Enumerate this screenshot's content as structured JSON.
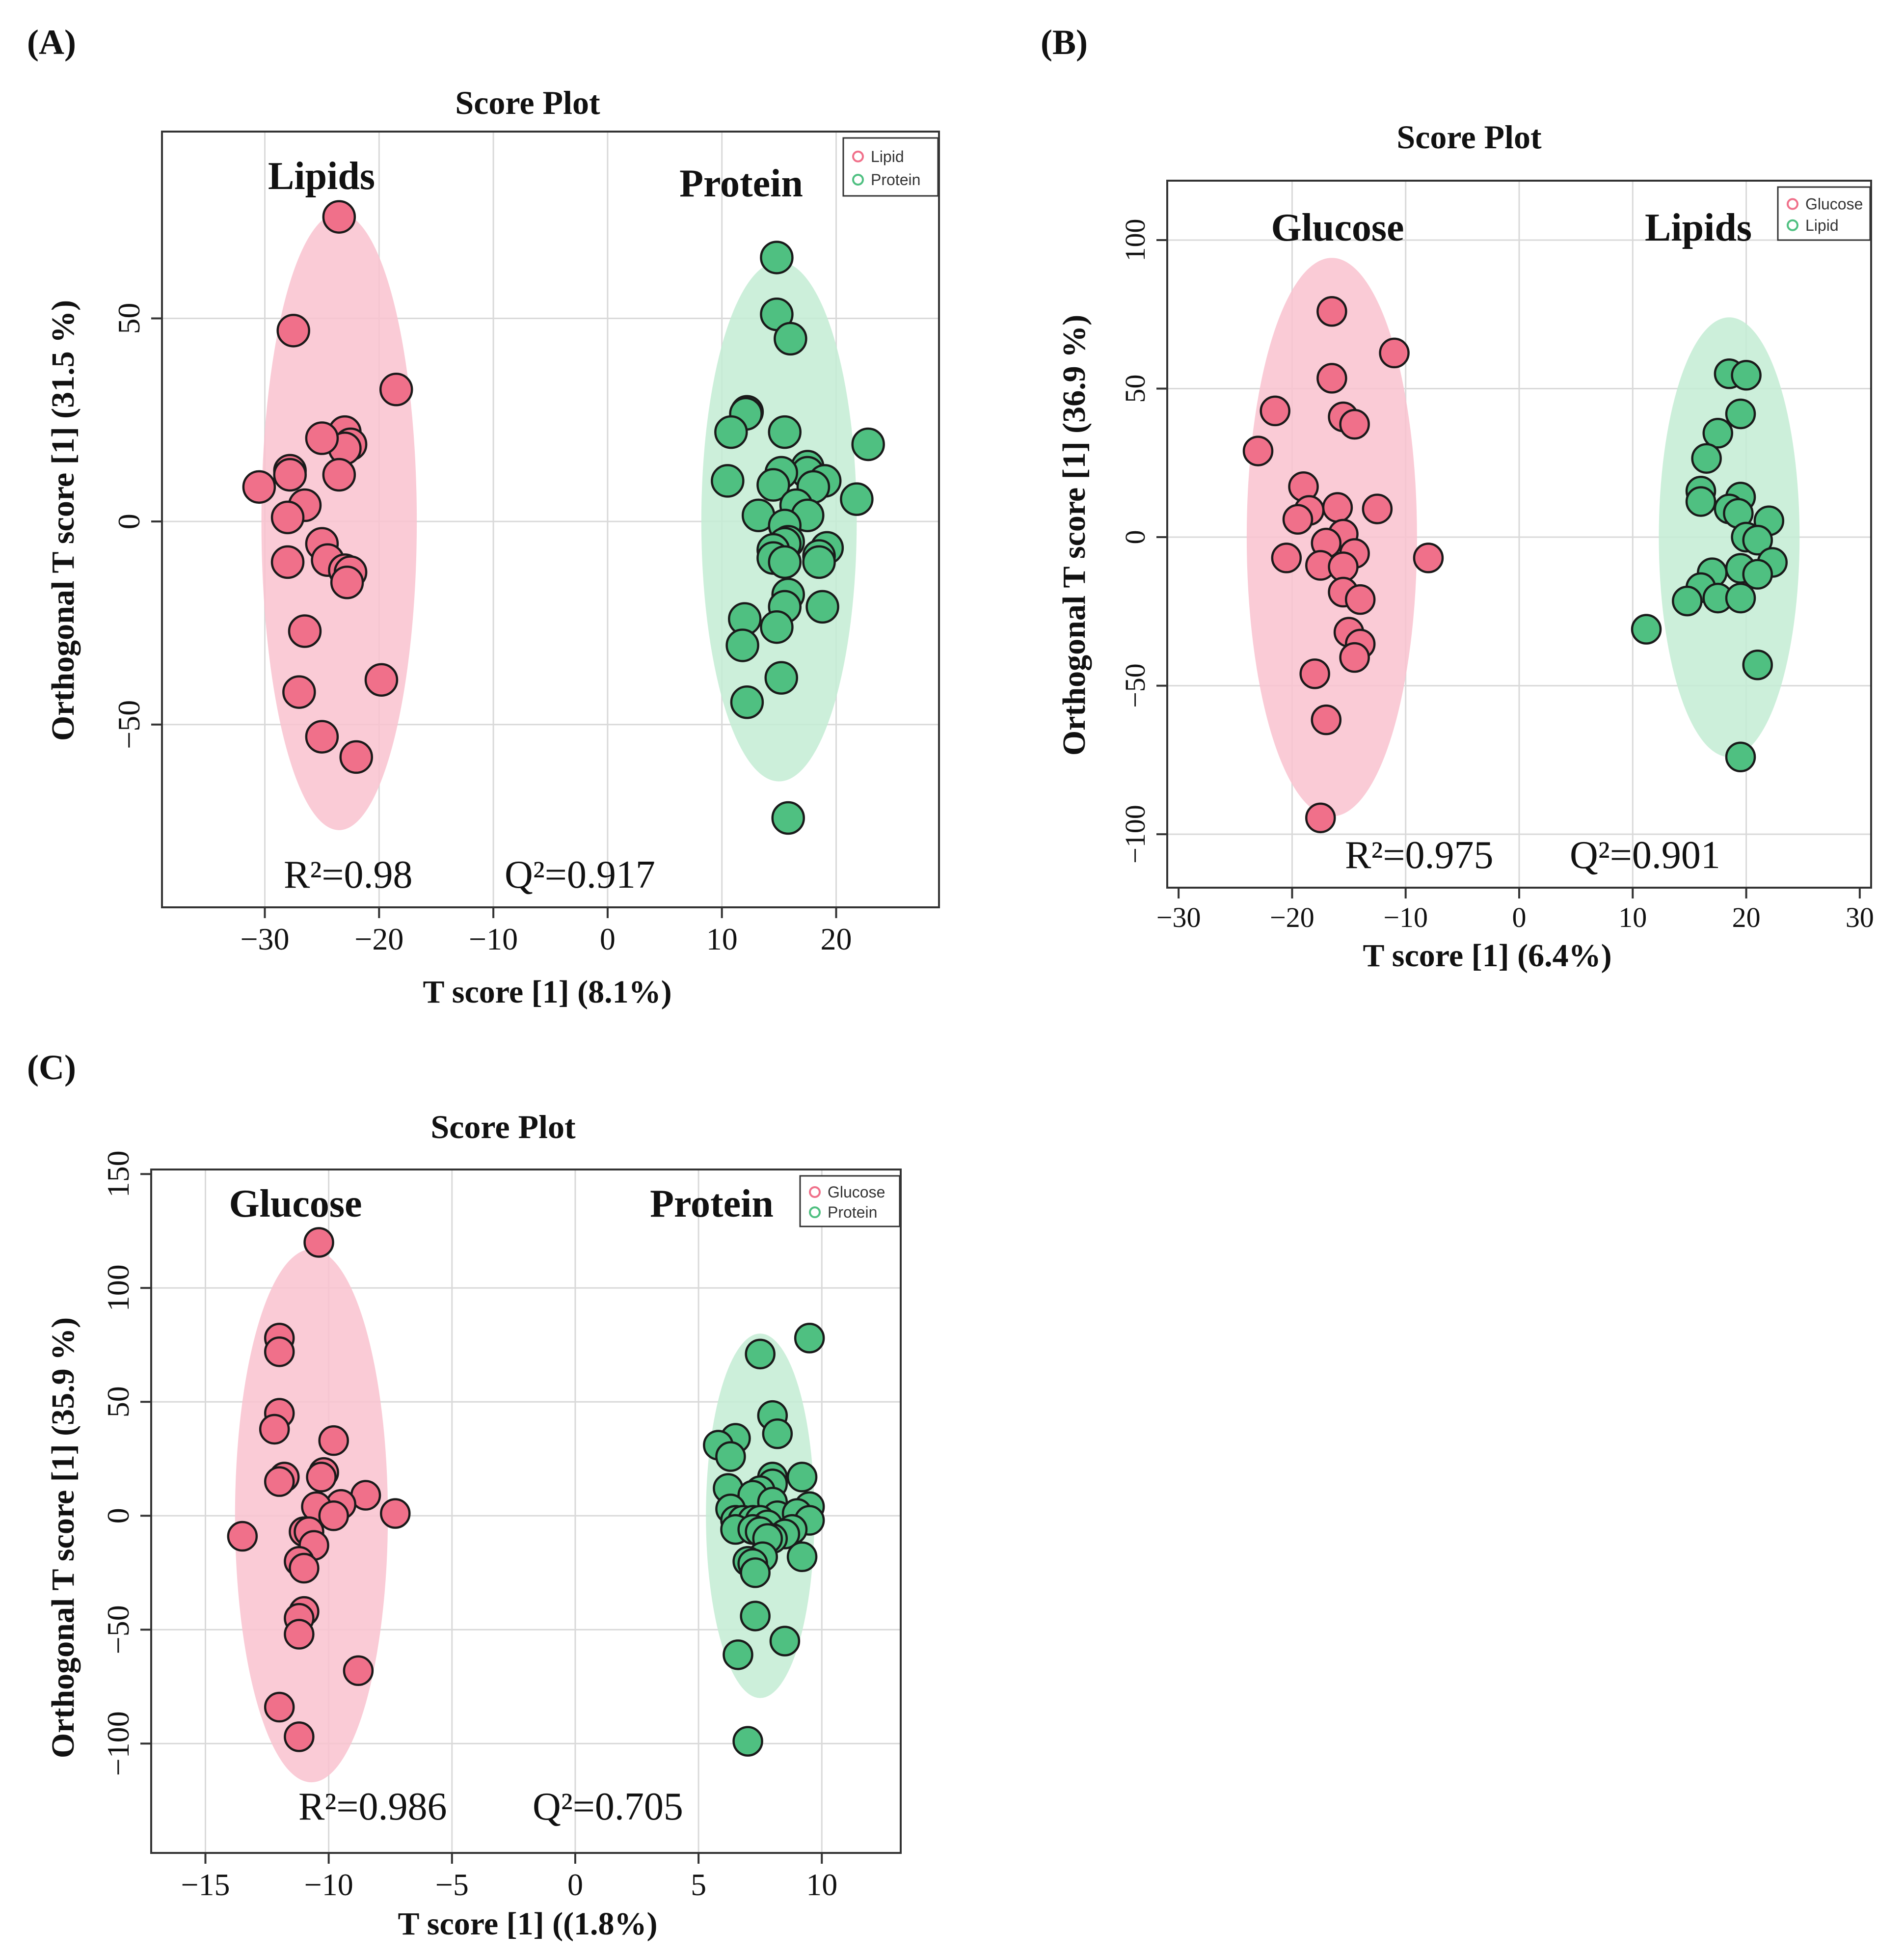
{
  "figure": {
    "panels_label_style": "parenthesized bold letters"
  },
  "colors": {
    "group_a": "#f0708a",
    "group_a_ellipse": "#f9c2cf",
    "group_b": "#4fc081",
    "group_b_ellipse": "#c3ecd3",
    "grid": "#d9d9d9",
    "axis": "#333333",
    "text": "#111111"
  },
  "chart_data": [
    {
      "panel_label": "(A)",
      "type": "scatter",
      "title": "Score Plot",
      "xlabel": "T score [1] (8.1%)",
      "ylabel": "Orthogonal T score [1] (31.5 %)",
      "xlim": [
        -39,
        29
      ],
      "ylim": [
        -95,
        96
      ],
      "xticks": [
        -30,
        -20,
        -10,
        0,
        10,
        20
      ],
      "xtick_labels": [
        "−30",
        "−20",
        "−10",
        "0",
        "10",
        "20"
      ],
      "yticks": [
        -50,
        0,
        50
      ],
      "ytick_labels": [
        "−50",
        "0",
        "50"
      ],
      "xgrid": [
        -30,
        -20,
        -10,
        0,
        10,
        20
      ],
      "ygrid": [
        -50,
        0,
        50
      ],
      "legend_position": "top-right",
      "stats": {
        "r2": "R²=0.98",
        "q2": "Q²=0.917"
      },
      "series": [
        {
          "name": "Lipid",
          "annotation": "Lipids",
          "color_key": "group_a",
          "ellipse": {
            "cx": -23.5,
            "cy": 0,
            "rx": 6.8,
            "ry": 76
          },
          "points": [
            [
              -23.5,
              75
            ],
            [
              -27.5,
              47
            ],
            [
              -18.5,
              32.5
            ],
            [
              -23,
              22
            ],
            [
              -22.5,
              19
            ],
            [
              -23,
              18
            ],
            [
              -25,
              20.5
            ],
            [
              -27.8,
              12.5
            ],
            [
              -27.8,
              11.5
            ],
            [
              -23.5,
              11.5
            ],
            [
              -30.5,
              8.5
            ],
            [
              -26.5,
              4
            ],
            [
              -28,
              1
            ],
            [
              -25,
              -5.5
            ],
            [
              -24.5,
              -9.5
            ],
            [
              -23,
              -12
            ],
            [
              -22.5,
              -12.5
            ],
            [
              -22.8,
              -15
            ],
            [
              -28,
              -10
            ],
            [
              -26.5,
              -27
            ],
            [
              -19.8,
              -39
            ],
            [
              -27,
              -42
            ],
            [
              -25,
              -53
            ],
            [
              -22,
              -58
            ]
          ]
        },
        {
          "name": "Protein",
          "annotation": "Protein",
          "color_key": "group_b",
          "ellipse": {
            "cx": 15,
            "cy": 0,
            "rx": 6.8,
            "ry": 64
          },
          "points": [
            [
              14.8,
              65
            ],
            [
              14.8,
              51
            ],
            [
              16,
              45
            ],
            [
              12.2,
              27
            ],
            [
              12.1,
              26.5
            ],
            [
              10.8,
              22
            ],
            [
              15.5,
              22
            ],
            [
              22.8,
              19
            ],
            [
              17.5,
              13.5
            ],
            [
              17.5,
              12
            ],
            [
              15.2,
              12
            ],
            [
              14.5,
              9
            ],
            [
              10.5,
              10
            ],
            [
              19,
              10
            ],
            [
              18,
              8.5
            ],
            [
              21.8,
              5.5
            ],
            [
              16.5,
              4
            ],
            [
              17.5,
              1.5
            ],
            [
              13.2,
              1.5
            ],
            [
              15.5,
              -1
            ],
            [
              15.8,
              -5
            ],
            [
              15.5,
              -5.5
            ],
            [
              14.5,
              -7
            ],
            [
              19.2,
              -6.5
            ],
            [
              14.5,
              -9
            ],
            [
              18.5,
              -8.5
            ],
            [
              18.5,
              -10
            ],
            [
              15.5,
              -10
            ],
            [
              15.8,
              -18
            ],
            [
              15.5,
              -21
            ],
            [
              18.8,
              -21
            ],
            [
              12,
              -24
            ],
            [
              14.8,
              -26
            ],
            [
              11.8,
              -30.5
            ],
            [
              15.2,
              -38.5
            ],
            [
              12.2,
              -44.5
            ],
            [
              15.8,
              -73
            ]
          ]
        }
      ]
    },
    {
      "panel_label": "(B)",
      "type": "scatter",
      "title": "Score Plot",
      "xlabel": "T score [1] (6.4%)",
      "ylabel": "Orthogonal T score [1] (36.9 %)",
      "xlim": [
        -31,
        31
      ],
      "ylim": [
        -118,
        120
      ],
      "xticks": [
        -30,
        -20,
        -10,
        0,
        10,
        20,
        30
      ],
      "xtick_labels": [
        "−30",
        "−20",
        "−10",
        "0",
        "10",
        "20",
        "30"
      ],
      "yticks": [
        -100,
        -50,
        0,
        50,
        100
      ],
      "ytick_labels": [
        "−100",
        "−50",
        "0",
        "50",
        "100"
      ],
      "xgrid": [
        -20,
        -10,
        0,
        10,
        20
      ],
      "ygrid": [
        -100,
        -50,
        0,
        50,
        100
      ],
      "legend_position": "top-right",
      "stats": {
        "r2": "R²=0.975",
        "q2": "Q²=0.901"
      },
      "series": [
        {
          "name": "Glucose",
          "annotation": "Glucose",
          "color_key": "group_a",
          "ellipse": {
            "cx": -16.5,
            "cy": 0,
            "rx": 7.5,
            "ry": 94
          },
          "points": [
            [
              -16.5,
              76
            ],
            [
              -11,
              62
            ],
            [
              -16.5,
              53.5
            ],
            [
              -21.5,
              42.5
            ],
            [
              -15.5,
              40.5
            ],
            [
              -14.5,
              38
            ],
            [
              -23,
              29
            ],
            [
              -19,
              17
            ],
            [
              -16,
              10
            ],
            [
              -12.5,
              9.5
            ],
            [
              -18.5,
              9
            ],
            [
              -19.5,
              6
            ],
            [
              -15.5,
              1
            ],
            [
              -14.5,
              -5.5
            ],
            [
              -20.5,
              -7
            ],
            [
              -17,
              -2
            ],
            [
              -8,
              -7
            ],
            [
              -17.5,
              -9.5
            ],
            [
              -15.5,
              -10
            ],
            [
              -15.5,
              -18.5
            ],
            [
              -14,
              -21
            ],
            [
              -15,
              -32
            ],
            [
              -14,
              -36
            ],
            [
              -14.5,
              -40.5
            ],
            [
              -18,
              -46
            ],
            [
              -17,
              -61.5
            ],
            [
              -17.5,
              -94.5
            ]
          ]
        },
        {
          "name": "Lipid",
          "annotation": "Lipids",
          "color_key": "group_b",
          "ellipse": {
            "cx": 18.5,
            "cy": 0,
            "rx": 6.2,
            "ry": 74
          },
          "points": [
            [
              18.5,
              55
            ],
            [
              20,
              54.5
            ],
            [
              19.5,
              41.5
            ],
            [
              17.5,
              35
            ],
            [
              16.5,
              26.5
            ],
            [
              16,
              15.5
            ],
            [
              16,
              12
            ],
            [
              19.5,
              13.5
            ],
            [
              18.5,
              9.5
            ],
            [
              19.3,
              8
            ],
            [
              22,
              5.5
            ],
            [
              20,
              0
            ],
            [
              21,
              -1
            ],
            [
              19.5,
              -10.5
            ],
            [
              22.3,
              -8.5
            ],
            [
              21,
              -12.5
            ],
            [
              17,
              -12
            ],
            [
              16,
              -17
            ],
            [
              17.5,
              -20.5
            ],
            [
              19.5,
              -20.5
            ],
            [
              14.8,
              -21.5
            ],
            [
              11.2,
              -31
            ],
            [
              21,
              -43
            ],
            [
              19.5,
              -74
            ]
          ]
        }
      ]
    },
    {
      "panel_label": "(C)",
      "type": "scatter",
      "title": "Score Plot",
      "xlabel": "T score [1] ((1.8%)",
      "ylabel": "Orthogonal T score [1] (35.9 %)",
      "xlim": [
        -17.2,
        13.2
      ],
      "ylim": [
        -148,
        152
      ],
      "xticks": [
        -15,
        -10,
        -5,
        0,
        5,
        10
      ],
      "xtick_labels": [
        "−15",
        "−10",
        "−5",
        "0",
        "5",
        "10"
      ],
      "yticks": [
        -100,
        -50,
        0,
        50,
        100,
        150
      ],
      "ytick_labels": [
        "−100",
        "−50",
        "0",
        "50",
        "100",
        "150"
      ],
      "xgrid": [
        -15,
        -10,
        -5,
        0,
        5,
        10
      ],
      "ygrid": [
        -100,
        -50,
        0,
        50,
        100
      ],
      "legend_position": "top-right",
      "stats": {
        "r2": "R²=0.986",
        "q2": "Q²=0.705"
      },
      "series": [
        {
          "name": "Glucose",
          "annotation": "Glucose",
          "color_key": "group_a",
          "ellipse": {
            "cx": -10.7,
            "cy": 0,
            "rx": 3.1,
            "ry": 117
          },
          "points": [
            [
              -10.4,
              120
            ],
            [
              -12,
              78
            ],
            [
              -12,
              72
            ],
            [
              -12,
              45
            ],
            [
              -12.2,
              38
            ],
            [
              -9.8,
              33
            ],
            [
              -11.8,
              17
            ],
            [
              -10.2,
              19
            ],
            [
              -10.3,
              17
            ],
            [
              -12,
              15
            ],
            [
              -8.5,
              9
            ],
            [
              -9.5,
              5
            ],
            [
              -10.5,
              4
            ],
            [
              -9.8,
              0
            ],
            [
              -7.3,
              1
            ],
            [
              -11,
              -7
            ],
            [
              -10.8,
              -7
            ],
            [
              -13.5,
              -9
            ],
            [
              -10.6,
              -13
            ],
            [
              -11.2,
              -20
            ],
            [
              -11,
              -23
            ],
            [
              -11,
              -42
            ],
            [
              -11.2,
              -45
            ],
            [
              -11.2,
              -52
            ],
            [
              -8.8,
              -68
            ],
            [
              -12,
              -84
            ],
            [
              -11.2,
              -97
            ]
          ]
        },
        {
          "name": "Protein",
          "annotation": "Protein",
          "color_key": "group_b",
          "ellipse": {
            "cx": 7.5,
            "cy": 0,
            "rx": 2.2,
            "ry": 80
          },
          "points": [
            [
              9.5,
              78
            ],
            [
              7.5,
              71
            ],
            [
              8,
              44
            ],
            [
              8.2,
              36
            ],
            [
              6.5,
              34
            ],
            [
              5.8,
              31
            ],
            [
              6.3,
              26
            ],
            [
              9.2,
              17
            ],
            [
              8,
              17
            ],
            [
              8,
              14
            ],
            [
              6.2,
              12
            ],
            [
              7.5,
              11
            ],
            [
              7.2,
              9
            ],
            [
              8,
              6
            ],
            [
              6.3,
              3
            ],
            [
              9.5,
              4
            ],
            [
              8.2,
              0
            ],
            [
              9,
              1
            ],
            [
              6.5,
              -2
            ],
            [
              6.8,
              -2
            ],
            [
              7.2,
              -2
            ],
            [
              7.5,
              -2
            ],
            [
              9.5,
              -2
            ],
            [
              7.8,
              -4
            ],
            [
              6.5,
              -6
            ],
            [
              7.2,
              -6
            ],
            [
              8.8,
              -6
            ],
            [
              7.5,
              -7
            ],
            [
              8.5,
              -8
            ],
            [
              8,
              -10
            ],
            [
              7.8,
              -10
            ],
            [
              9.2,
              -18
            ],
            [
              7.6,
              -18
            ],
            [
              7,
              -20
            ],
            [
              7.2,
              -21
            ],
            [
              7.3,
              -25
            ],
            [
              7.3,
              -44
            ],
            [
              8.5,
              -55
            ],
            [
              6.6,
              -61
            ],
            [
              7,
              -99
            ]
          ]
        }
      ]
    }
  ]
}
